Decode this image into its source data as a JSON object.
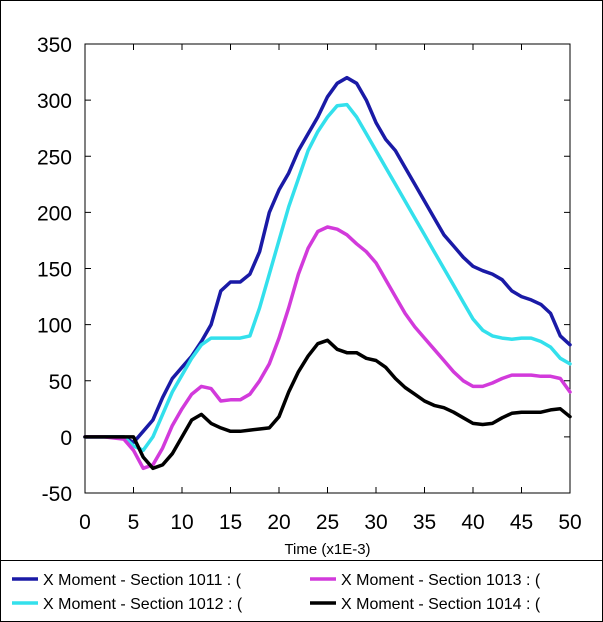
{
  "chart_data": {
    "type": "line",
    "xlabel": "Time (x1E-3)",
    "ylabel": "",
    "xlim": [
      0,
      50
    ],
    "ylim": [
      -50,
      350
    ],
    "xticks": [
      "0",
      "5",
      "10",
      "15",
      "20",
      "25",
      "30",
      "35",
      "40",
      "45",
      "50"
    ],
    "yticks": [
      "-50",
      "0",
      "50",
      "100",
      "150",
      "200",
      "250",
      "300",
      "350"
    ],
    "grid": false,
    "legend_position": "bottom",
    "series": [
      {
        "name": "X Moment - Section 1011 : (",
        "color": "#1a1aa6",
        "x": [
          0,
          2,
          4,
          5,
          6,
          7,
          8,
          9,
          10,
          11,
          12,
          13,
          14,
          15,
          16,
          17,
          18,
          19,
          20,
          21,
          22,
          23,
          24,
          25,
          26,
          27,
          28,
          29,
          30,
          31,
          32,
          33,
          34,
          35,
          36,
          37,
          38,
          39,
          40,
          41,
          42,
          43,
          44,
          45,
          46,
          47,
          48,
          49,
          50
        ],
        "y": [
          0,
          0,
          0,
          -5,
          5,
          15,
          35,
          52,
          62,
          72,
          85,
          100,
          130,
          138,
          138,
          145,
          165,
          200,
          220,
          235,
          255,
          270,
          285,
          303,
          315,
          320,
          315,
          300,
          280,
          265,
          255,
          240,
          225,
          210,
          195,
          180,
          170,
          160,
          152,
          148,
          145,
          140,
          130,
          125,
          122,
          118,
          110,
          90,
          82
        ]
      },
      {
        "name": "X Moment - Section 1012 : (",
        "color": "#33e0ec",
        "x": [
          0,
          2,
          4,
          5,
          6,
          7,
          8,
          9,
          10,
          11,
          12,
          13,
          14,
          15,
          16,
          17,
          18,
          19,
          20,
          21,
          22,
          23,
          24,
          25,
          26,
          27,
          28,
          29,
          30,
          31,
          32,
          33,
          34,
          35,
          36,
          37,
          38,
          39,
          40,
          41,
          42,
          43,
          44,
          45,
          46,
          47,
          48,
          49,
          50
        ],
        "y": [
          0,
          0,
          0,
          -8,
          -12,
          0,
          20,
          40,
          55,
          70,
          82,
          88,
          88,
          88,
          88,
          90,
          115,
          145,
          175,
          205,
          230,
          255,
          272,
          285,
          295,
          296,
          285,
          270,
          255,
          240,
          225,
          210,
          195,
          180,
          165,
          150,
          135,
          120,
          105,
          95,
          90,
          88,
          87,
          88,
          88,
          85,
          80,
          70,
          65
        ]
      },
      {
        "name": "X Moment - Section 1013 : (",
        "color": "#d23adb",
        "x": [
          0,
          2,
          4,
          5,
          6,
          7,
          8,
          9,
          10,
          11,
          12,
          13,
          14,
          15,
          16,
          17,
          18,
          19,
          20,
          21,
          22,
          23,
          24,
          25,
          26,
          27,
          28,
          29,
          30,
          31,
          32,
          33,
          34,
          35,
          36,
          37,
          38,
          39,
          40,
          41,
          42,
          43,
          44,
          45,
          46,
          47,
          48,
          49,
          50
        ],
        "y": [
          0,
          0,
          -2,
          -12,
          -28,
          -25,
          -10,
          10,
          25,
          38,
          45,
          43,
          32,
          33,
          33,
          38,
          50,
          65,
          88,
          115,
          145,
          168,
          183,
          187,
          185,
          180,
          172,
          165,
          155,
          140,
          125,
          110,
          98,
          88,
          78,
          68,
          58,
          50,
          45,
          45,
          48,
          52,
          55,
          55,
          55,
          54,
          54,
          52,
          40
        ]
      },
      {
        "name": "X Moment - Section 1014 : (",
        "color": "#000000",
        "x": [
          0,
          2,
          4,
          5,
          6,
          7,
          8,
          9,
          10,
          11,
          12,
          13,
          14,
          15,
          16,
          17,
          18,
          19,
          20,
          21,
          22,
          23,
          24,
          25,
          26,
          27,
          28,
          29,
          30,
          31,
          32,
          33,
          34,
          35,
          36,
          37,
          38,
          39,
          40,
          41,
          42,
          43,
          44,
          45,
          46,
          47,
          48,
          49,
          50
        ],
        "y": [
          0,
          0,
          0,
          0,
          -18,
          -28,
          -25,
          -15,
          0,
          15,
          20,
          12,
          8,
          5,
          5,
          6,
          7,
          8,
          18,
          40,
          58,
          72,
          83,
          86,
          78,
          75,
          75,
          70,
          68,
          62,
          52,
          44,
          38,
          32,
          28,
          26,
          22,
          17,
          12,
          11,
          12,
          17,
          21,
          22,
          22,
          22,
          24,
          25,
          18
        ]
      }
    ]
  }
}
